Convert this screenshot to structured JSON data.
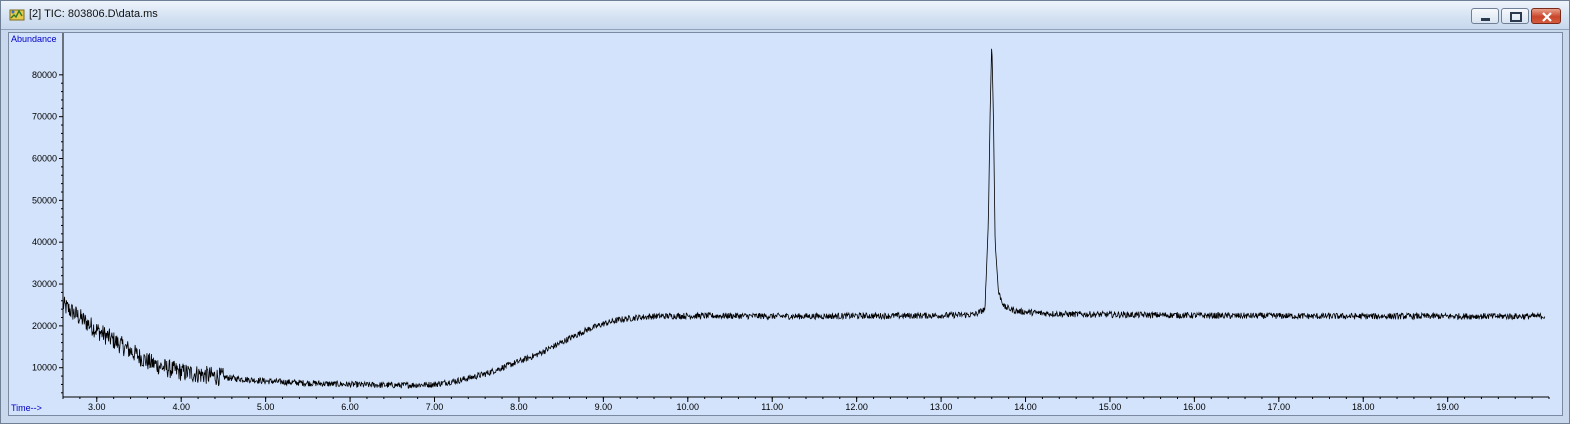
{
  "window": {
    "title": "[2] TIC: 803806.D\\data.ms",
    "icon": "chromatogram-app-icon",
    "controls": [
      "minimize",
      "maximize",
      "close"
    ],
    "colors": {
      "plot_background": "#d3e3fb",
      "trace": "#000000",
      "axis_label": "#0000c8"
    }
  },
  "chart_data": {
    "type": "line",
    "title": "",
    "xlabel": "Time-->",
    "ylabel": "Abundance",
    "xlim": [
      2.6,
      20.2
    ],
    "ylim": [
      3000,
      90000
    ],
    "x_ticks": [
      3.0,
      4.0,
      5.0,
      6.0,
      7.0,
      8.0,
      9.0,
      10.0,
      11.0,
      12.0,
      13.0,
      14.0,
      15.0,
      16.0,
      17.0,
      18.0,
      19.0
    ],
    "x_tick_labels": [
      "3.00",
      "4.00",
      "5.00",
      "6.00",
      "7.00",
      "8.00",
      "9.00",
      "10.00",
      "11.00",
      "12.00",
      "13.00",
      "14.00",
      "15.00",
      "16.00",
      "17.00",
      "18.00",
      "19.00"
    ],
    "y_ticks": [
      10000,
      20000,
      30000,
      40000,
      50000,
      60000,
      70000,
      80000
    ],
    "y_tick_labels": [
      "10000",
      "20000",
      "30000",
      "40000",
      "50000",
      "60000",
      "70000",
      "80000"
    ],
    "grid": false,
    "legend": "none",
    "series": [
      {
        "x": [
          2.6,
          2.8,
          3.0,
          3.2,
          3.4,
          3.6,
          3.8,
          4.0,
          4.3,
          4.6,
          5.0,
          5.4,
          5.8,
          6.2,
          6.6,
          7.0,
          7.3,
          7.6,
          7.8,
          8.0,
          8.2,
          8.4,
          8.6,
          8.8,
          9.0,
          9.2,
          9.4,
          9.6,
          10.0,
          10.5,
          11.0,
          11.5,
          12.0,
          12.5,
          13.0,
          13.4,
          13.52,
          13.56,
          13.58,
          13.6,
          13.62,
          13.64,
          13.68,
          13.75,
          13.9,
          14.2,
          14.5,
          15.0,
          15.5,
          16.0,
          16.5,
          17.0,
          17.5,
          18.0,
          18.5,
          19.0,
          19.5,
          20.0,
          20.15
        ],
        "y": [
          25000,
          22000,
          19000,
          16500,
          14000,
          11500,
          10000,
          9000,
          8200,
          7500,
          6800,
          6400,
          6100,
          5900,
          5800,
          6000,
          7000,
          8500,
          10000,
          11500,
          13000,
          15000,
          17000,
          19000,
          20500,
          21500,
          22000,
          22300,
          22400,
          22400,
          22300,
          22300,
          22400,
          22400,
          22500,
          22700,
          24000,
          45000,
          70000,
          88000,
          70000,
          40000,
          28000,
          24500,
          23500,
          23000,
          22800,
          22700,
          22600,
          22500,
          22400,
          22400,
          22300,
          22300,
          22300,
          22300,
          22300,
          22300,
          22300
        ]
      }
    ]
  }
}
